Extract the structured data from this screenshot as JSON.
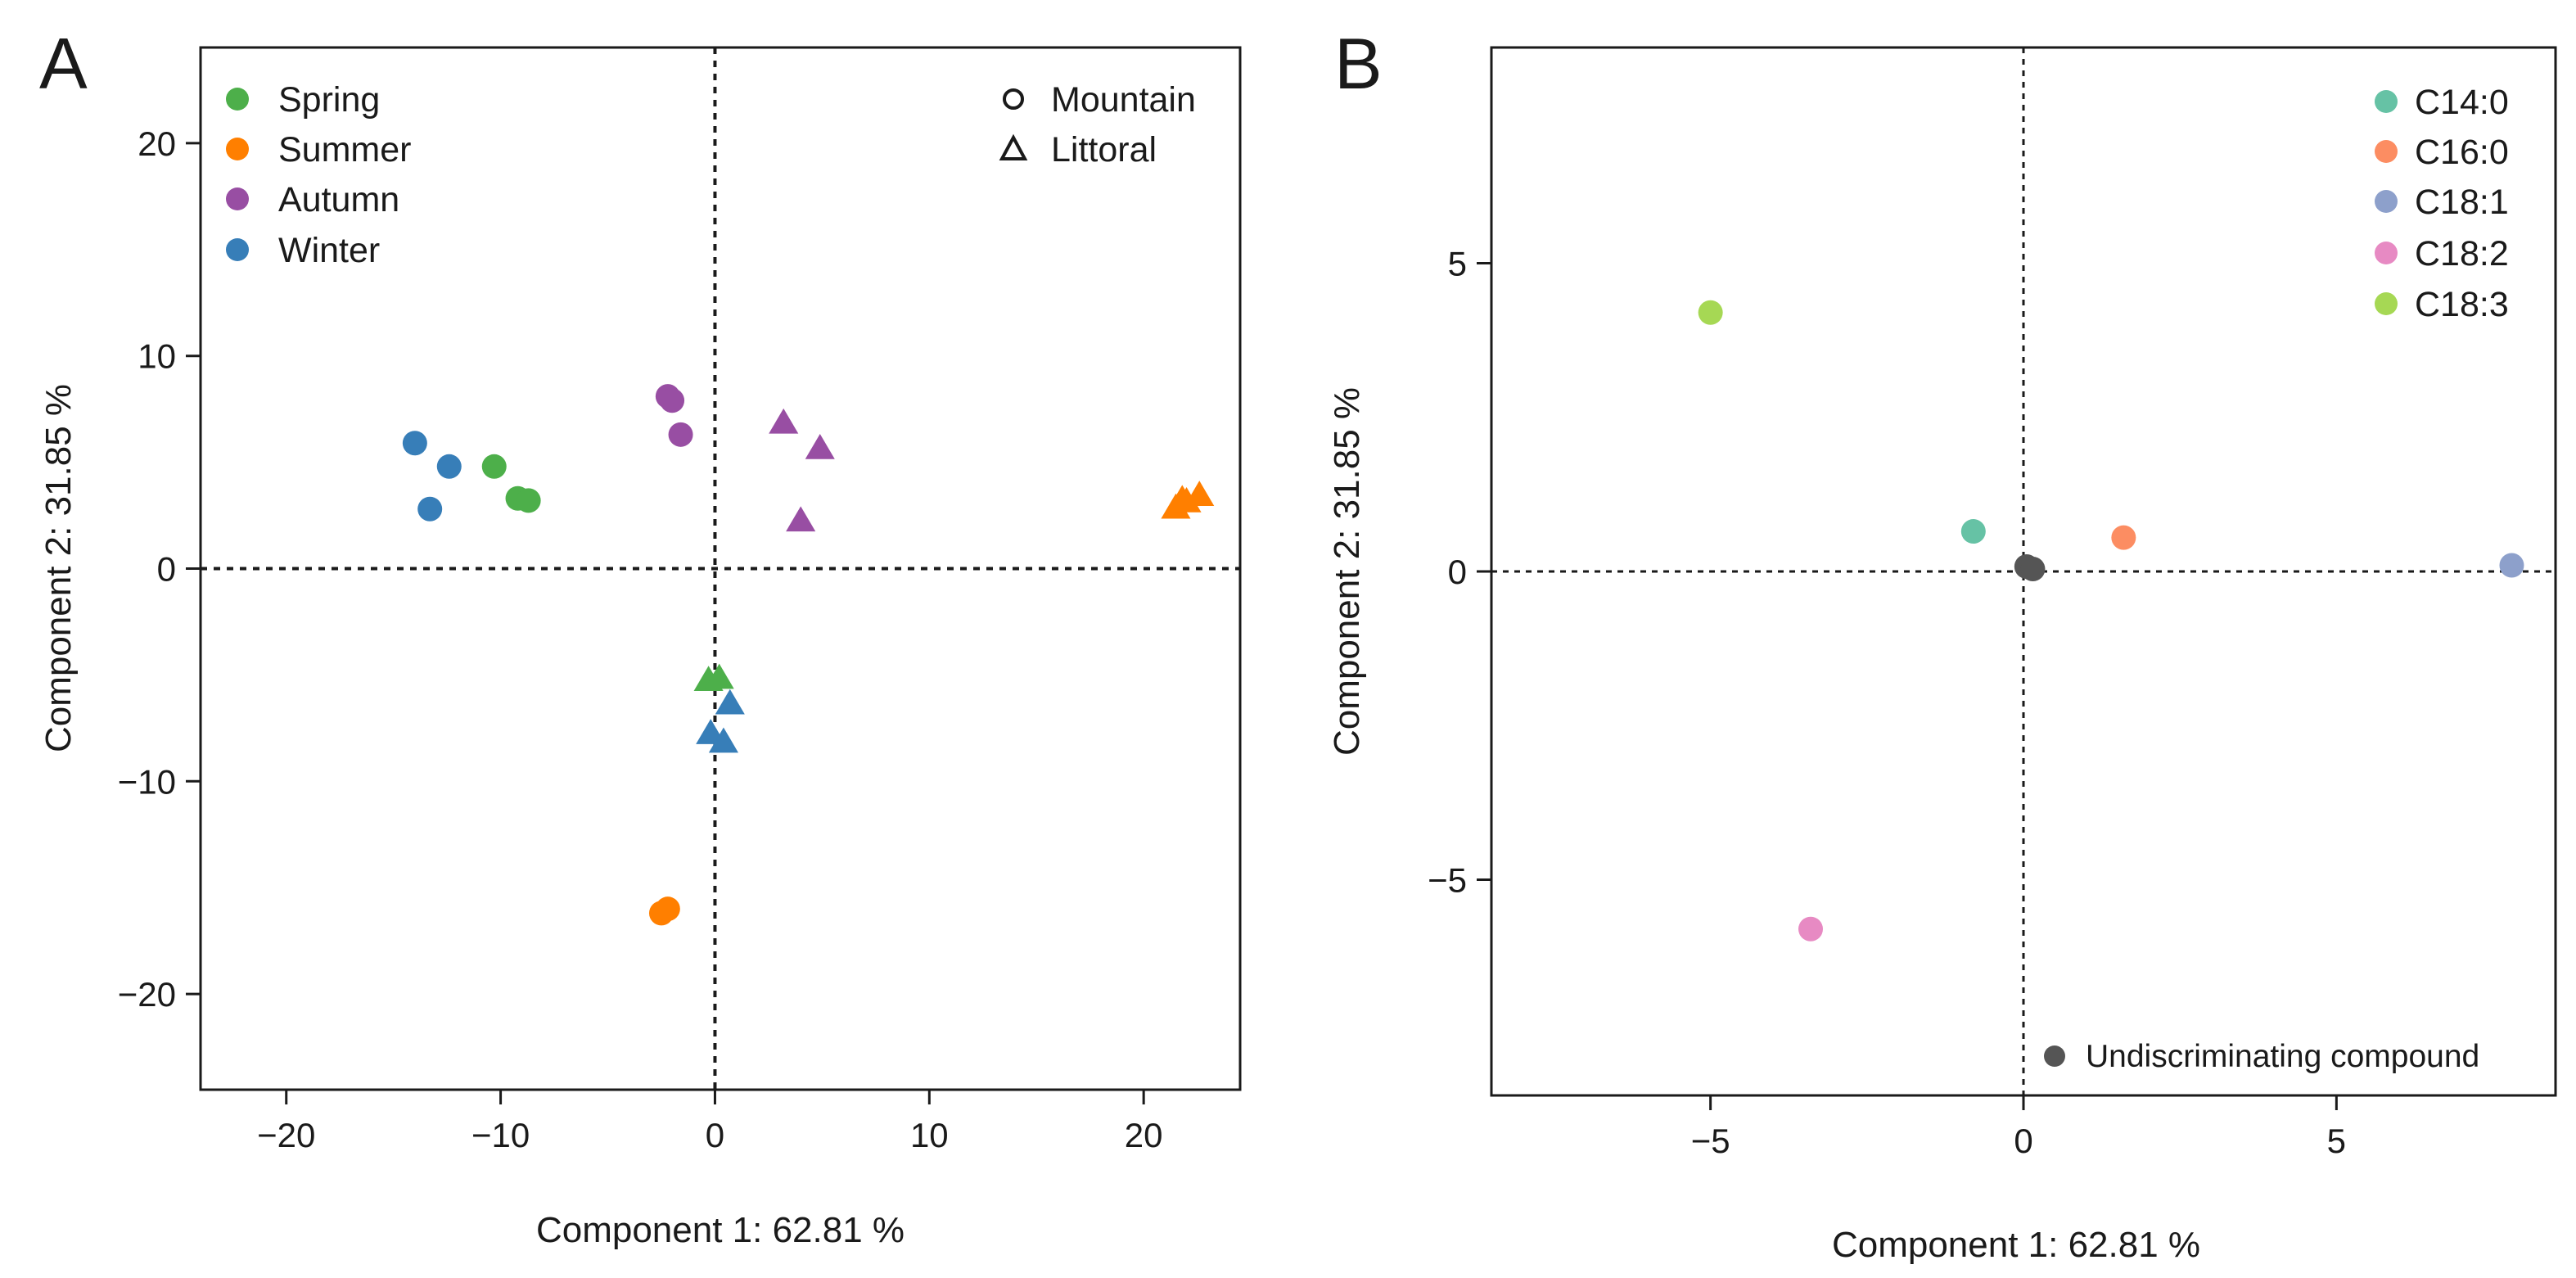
{
  "chart_data": [
    {
      "panel": "A",
      "type": "scatter",
      "xlabel": "Component 1: 62.81 %",
      "ylabel": "Component 2: 31.85 %",
      "xlim": [
        -24,
        24.5
      ],
      "ylim": [
        -24.5,
        24.5
      ],
      "xticks": [
        -20,
        -10,
        0,
        10,
        20
      ],
      "yticks": [
        -20,
        -10,
        0,
        10,
        20
      ],
      "xtick_labels": [
        "−20",
        "−10",
        "0",
        "10",
        "20"
      ],
      "ytick_labels": [
        "−20",
        "−10",
        "0",
        "10",
        "20"
      ],
      "reference_lines": {
        "x": 0,
        "y": 0,
        "style": "dotted"
      },
      "legend_seasons": [
        {
          "label": "Spring",
          "color": "#4daf4a"
        },
        {
          "label": "Summer",
          "color": "#ff7f00"
        },
        {
          "label": "Autumn",
          "color": "#984ea3"
        },
        {
          "label": "Winter",
          "color": "#377eb8"
        }
      ],
      "legend_sites": [
        {
          "label": "Mountain",
          "shape": "circle"
        },
        {
          "label": "Littoral",
          "shape": "triangle"
        }
      ],
      "series": [
        {
          "season": "Spring",
          "site": "Mountain",
          "color": "#4daf4a",
          "shape": "circle",
          "points": [
            [
              -10.3,
              4.8
            ],
            [
              -9.2,
              3.3
            ],
            [
              -8.7,
              3.2
            ]
          ]
        },
        {
          "season": "Spring",
          "site": "Littoral",
          "color": "#4daf4a",
          "shape": "triangle",
          "points": [
            [
              -0.3,
              -5.3
            ],
            [
              0.2,
              -5.2
            ]
          ]
        },
        {
          "season": "Summer",
          "site": "Mountain",
          "color": "#ff7f00",
          "shape": "circle",
          "points": [
            [
              -2.5,
              -16.2
            ],
            [
              -2.2,
              -16.0
            ]
          ]
        },
        {
          "season": "Summer",
          "site": "Littoral",
          "color": "#ff7f00",
          "shape": "triangle",
          "points": [
            [
              21.5,
              2.8
            ],
            [
              22.0,
              3.1
            ],
            [
              22.6,
              3.4
            ],
            [
              21.8,
              3.2
            ]
          ]
        },
        {
          "season": "Autumn",
          "site": "Mountain",
          "color": "#984ea3",
          "shape": "circle",
          "points": [
            [
              -2.2,
              8.1
            ],
            [
              -2.0,
              7.9
            ],
            [
              -1.6,
              6.3
            ]
          ]
        },
        {
          "season": "Autumn",
          "site": "Littoral",
          "color": "#984ea3",
          "shape": "triangle",
          "points": [
            [
              3.2,
              6.8
            ],
            [
              4.9,
              5.6
            ],
            [
              4.0,
              2.2
            ]
          ]
        },
        {
          "season": "Winter",
          "site": "Mountain",
          "color": "#377eb8",
          "shape": "circle",
          "points": [
            [
              -14.0,
              5.9
            ],
            [
              -12.4,
              4.8
            ],
            [
              -13.3,
              2.8
            ]
          ]
        },
        {
          "season": "Winter",
          "site": "Littoral",
          "color": "#377eb8",
          "shape": "triangle",
          "points": [
            [
              0.7,
              -6.4
            ],
            [
              -0.2,
              -7.8
            ],
            [
              0.4,
              -8.2
            ]
          ]
        }
      ]
    },
    {
      "panel": "B",
      "type": "scatter",
      "xlabel": "Component 1: 62.81 %",
      "ylabel": "Component 2: 31.85 %",
      "xlim": [
        -8.5,
        8.5
      ],
      "ylim": [
        -8.5,
        8.5
      ],
      "xticks": [
        -5,
        0,
        5
      ],
      "yticks": [
        -5,
        0,
        5
      ],
      "xtick_labels": [
        "−5",
        "0",
        "5"
      ],
      "ytick_labels": [
        "−5",
        "0",
        "5"
      ],
      "reference_lines": {
        "x": 0,
        "y": 0,
        "style": "dotted"
      },
      "legend": [
        {
          "label": "C14:0",
          "color": "#66c2a5"
        },
        {
          "label": "C16:0",
          "color": "#fc8d62"
        },
        {
          "label": "C18:1",
          "color": "#8da0cb"
        },
        {
          "label": "C18:2",
          "color": "#e78ac3"
        },
        {
          "label": "C18:3",
          "color": "#a6d854"
        }
      ],
      "legend_note": {
        "label": "Undiscriminating compound",
        "color": "#555555"
      },
      "points": [
        {
          "compound": "C14:0",
          "x": -0.8,
          "y": 0.65,
          "color": "#66c2a5"
        },
        {
          "compound": "C16:0",
          "x": 1.6,
          "y": 0.55,
          "color": "#fc8d62"
        },
        {
          "compound": "C18:1",
          "x": 7.8,
          "y": 0.1,
          "color": "#8da0cb"
        },
        {
          "compound": "C18:2",
          "x": -3.4,
          "y": -5.8,
          "color": "#e78ac3"
        },
        {
          "compound": "C18:3",
          "x": -5.0,
          "y": 4.2,
          "color": "#a6d854"
        },
        {
          "compound": "Undiscriminating compound",
          "x": 0.05,
          "y": 0.08,
          "color": "#555555"
        },
        {
          "compound": "Undiscriminating compound",
          "x": 0.15,
          "y": 0.04,
          "color": "#555555"
        }
      ]
    }
  ],
  "panel_labels": {
    "a": "A",
    "b": "B"
  }
}
